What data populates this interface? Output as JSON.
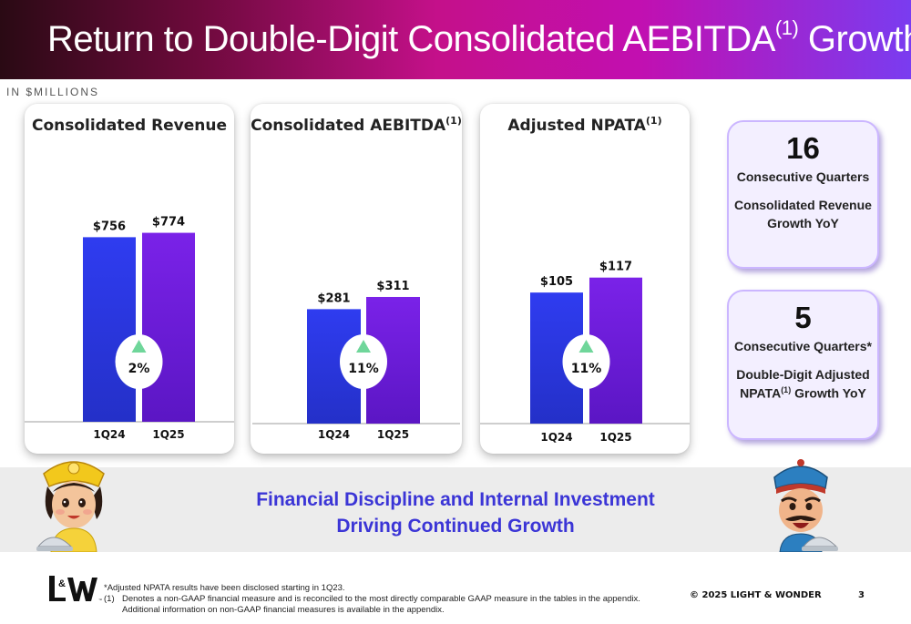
{
  "slide": {
    "title": "Return to Double-Digit Consolidated AEBITDA",
    "title_sup": "(1)",
    "title_tail": " Growth",
    "units": "IN $MILLIONS"
  },
  "chart_data": [
    {
      "type": "bar",
      "title": "Consolidated Revenue",
      "title_sup": "",
      "categories": [
        "1Q24",
        "1Q25"
      ],
      "values": [
        756,
        774
      ],
      "labels": [
        "$756",
        "$774"
      ],
      "growth_label": "2%",
      "colors": [
        "#2f3cf0",
        "#7a22e8"
      ]
    },
    {
      "type": "bar",
      "title": "Consolidated AEBITDA",
      "title_sup": "(1)",
      "categories": [
        "1Q24",
        "1Q25"
      ],
      "values": [
        281,
        311
      ],
      "labels": [
        "$281",
        "$311"
      ],
      "growth_label": "11%",
      "colors": [
        "#2f3cf0",
        "#7a22e8"
      ]
    },
    {
      "type": "bar",
      "title": "Adjusted NPATA",
      "title_sup": "(1)",
      "categories": [
        "1Q24",
        "1Q25"
      ],
      "values": [
        105,
        117
      ],
      "labels": [
        "$105",
        "$117"
      ],
      "growth_label": "11%",
      "colors": [
        "#2f3cf0",
        "#7a22e8"
      ]
    }
  ],
  "stats": [
    {
      "number": "16",
      "line1": "Consecutive Quarters",
      "line2": "Consolidated Revenue",
      "line3": "Growth YoY",
      "line3_sup": ""
    },
    {
      "number": "5",
      "line1": "Consecutive Quarters*",
      "line2": "Double-Digit Adjusted",
      "line3_pre": "NPATA",
      "line3_sup": "(1)",
      "line3": " Growth YoY"
    }
  ],
  "band": {
    "line1": "Financial Discipline and Internal Investment",
    "line2": "Driving Continued Growth"
  },
  "footer": {
    "logo_text": "L&W",
    "note_star": "*Adjusted NPATA results have been disclosed starting in 1Q23.",
    "note1_mark": "(1)",
    "note1_a": "Denotes a non-GAAP financial measure and is reconciled to the most directly comparable GAAP measure in the tables in the appendix.",
    "note1_b": "Additional information on non-GAAP financial measures is available in the appendix.",
    "copyright": "© 2025 LIGHT & WONDER",
    "page": "3"
  },
  "colors": {
    "accent_blue": "#3b35d6",
    "up_arrow": "#6fd69a"
  }
}
